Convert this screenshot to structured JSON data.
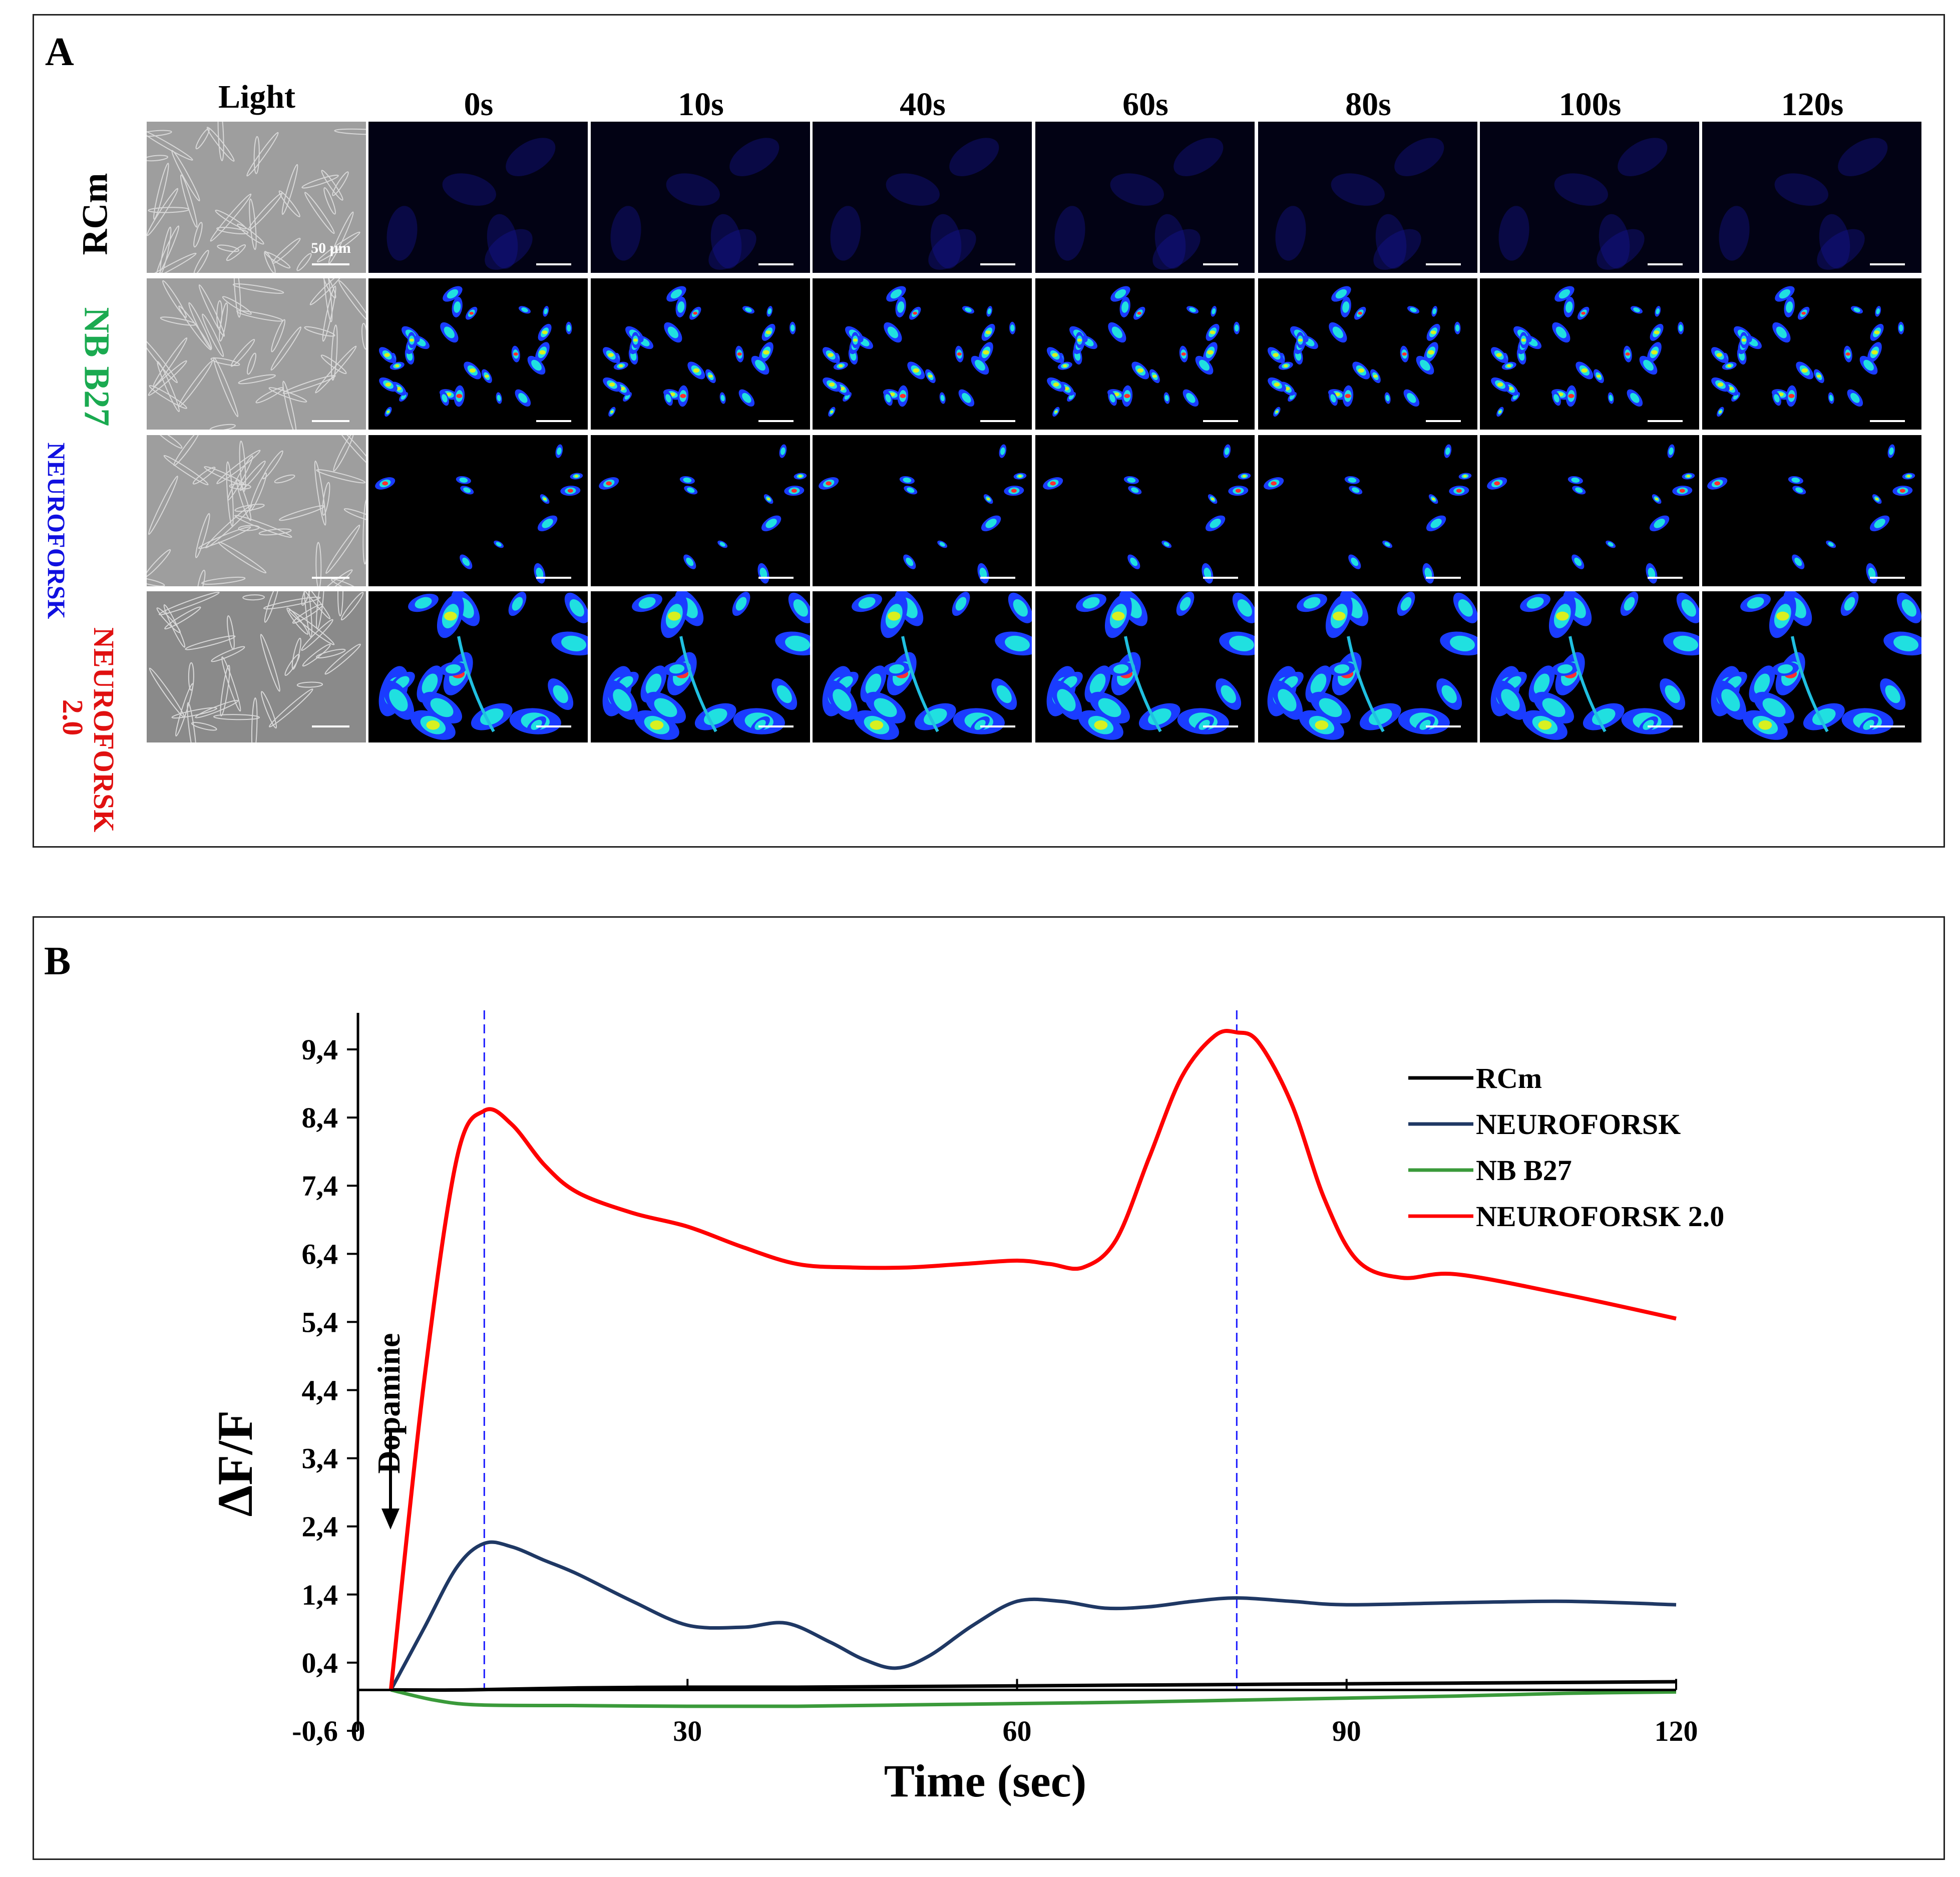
{
  "panelA": {
    "label": "A",
    "columns": [
      "Light",
      "0s",
      "10s",
      "40s",
      "60s",
      "80s",
      "100s",
      "120s"
    ],
    "rows": [
      {
        "label": "RCm",
        "color": "#000000",
        "type": "faint"
      },
      {
        "label": "NB B27",
        "color": "#1aaa50",
        "type": "sparse"
      },
      {
        "label": "NEUROFORSK",
        "color": "#1010e0",
        "type": "few"
      },
      {
        "label": "NEUROFORSK 2.0",
        "color": "#e01010",
        "type": "bright"
      }
    ],
    "scale_bar": "50 µm"
  },
  "panelB": {
    "label": "B",
    "annotation": "Dopamine"
  },
  "chart_data": {
    "type": "line",
    "xlabel": "Time (sec)",
    "ylabel": "ΔF/F",
    "xlim": [
      0,
      120
    ],
    "ylim": [
      -0.6,
      9.9
    ],
    "xticks": [
      0,
      30,
      60,
      90,
      120
    ],
    "yticks": [
      -0.6,
      0.4,
      1.4,
      2.4,
      3.4,
      4.4,
      5.4,
      6.4,
      7.4,
      8.4,
      9.4
    ],
    "ytick_labels": [
      "-0,6",
      "0,4",
      "1,4",
      "2,4",
      "3,4",
      "4,4",
      "5,4",
      "6,4",
      "7,4",
      "8,4",
      "9,4"
    ],
    "vlines": [
      11.5,
      80
    ],
    "legend_position": "top-right",
    "series": [
      {
        "name": "RCm",
        "color": "#000000",
        "x": [
          3,
          10,
          20,
          30,
          40,
          50,
          60,
          70,
          80,
          90,
          100,
          110,
          120
        ],
        "y": [
          0,
          0,
          0.03,
          0.04,
          0.04,
          0.05,
          0.06,
          0.07,
          0.08,
          0.09,
          0.1,
          0.11,
          0.12
        ]
      },
      {
        "name": "NEUROFORSK",
        "color": "#1f3864",
        "x": [
          3,
          6,
          9,
          11.5,
          14,
          17,
          20,
          25,
          30,
          35,
          39,
          43,
          46,
          49,
          52,
          56,
          60,
          64,
          68,
          72,
          76,
          80,
          85,
          90,
          100,
          110,
          120
        ],
        "y": [
          0,
          0.9,
          1.8,
          2.15,
          2.1,
          1.9,
          1.7,
          1.3,
          0.95,
          0.92,
          0.98,
          0.7,
          0.45,
          0.32,
          0.5,
          0.95,
          1.3,
          1.3,
          1.2,
          1.22,
          1.3,
          1.35,
          1.3,
          1.25,
          1.28,
          1.3,
          1.25
        ]
      },
      {
        "name": "NB B27",
        "color": "#3a9a3a",
        "x": [
          3,
          7,
          11,
          20,
          30,
          40,
          50,
          60,
          70,
          80,
          90,
          100,
          110,
          120
        ],
        "y": [
          0,
          -0.15,
          -0.22,
          -0.23,
          -0.24,
          -0.24,
          -0.22,
          -0.2,
          -0.18,
          -0.15,
          -0.12,
          -0.09,
          -0.05,
          -0.03
        ]
      },
      {
        "name": "NEUROFORSK 2.0",
        "color": "#ff0000",
        "x": [
          3,
          6,
          9,
          11.5,
          14,
          17,
          20,
          25,
          30,
          35,
          40,
          45,
          50,
          55,
          60,
          63,
          66,
          69,
          72,
          75,
          78,
          80,
          82,
          85,
          88,
          91,
          95,
          100,
          110,
          120
        ],
        "y": [
          0,
          4.5,
          7.8,
          8.5,
          8.3,
          7.7,
          7.3,
          7.0,
          6.8,
          6.5,
          6.25,
          6.2,
          6.2,
          6.25,
          6.3,
          6.25,
          6.2,
          6.6,
          7.8,
          9.0,
          9.6,
          9.65,
          9.5,
          8.6,
          7.2,
          6.3,
          6.05,
          6.1,
          5.8,
          5.45
        ]
      }
    ]
  }
}
